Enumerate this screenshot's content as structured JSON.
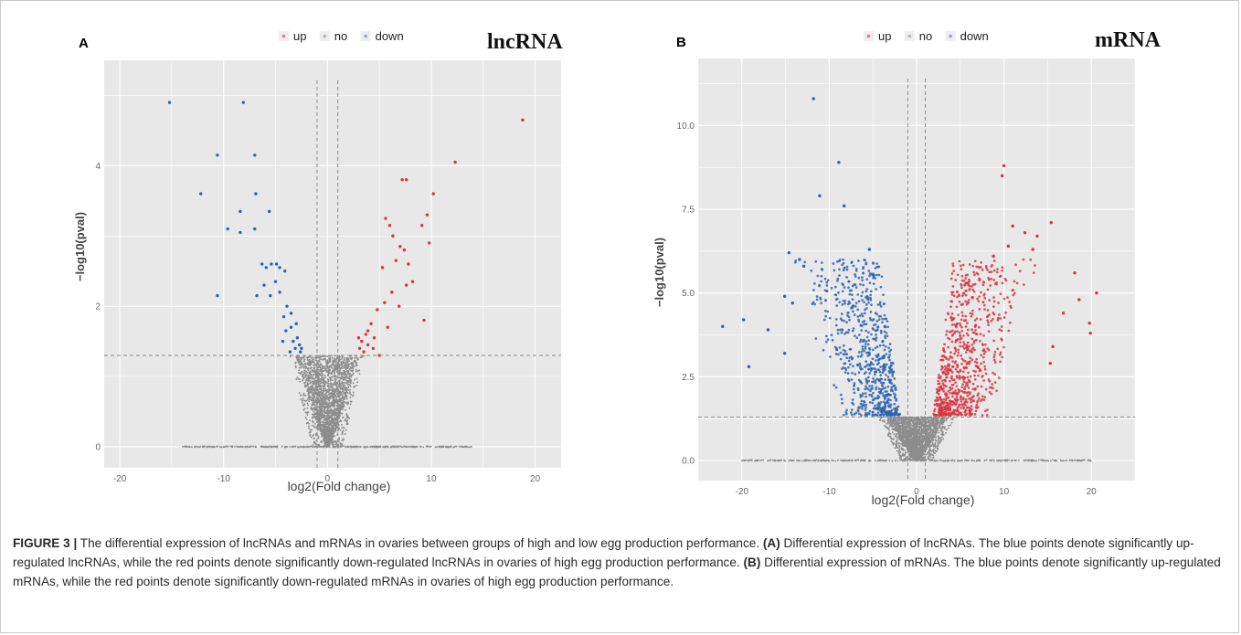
{
  "figure": {
    "panels": [
      {
        "letter": "A",
        "dataset_label": "lncRNA"
      },
      {
        "letter": "B",
        "dataset_label": "mRNA"
      }
    ]
  },
  "caption": {
    "figure_label": "FIGURE 3 |",
    "text_1": " The differential expression of lncRNAs and mRNAs in ovaries between groups of high and low egg production performance. ",
    "bold_a": "(A)",
    "text_2": " Differential expression of lncRNAs. The blue points denote significantly up-regulated lncRNAs, while the red points denote significantly down-regulated lncRNAs in ovaries of high egg production performance. ",
    "bold_b": "(B)",
    "text_3": " Differential expression of mRNAs. The blue points denote significantly up-regulated mRNAs, while the red points denote significantly down-regulated mRNAs in ovaries of high egg production performance."
  },
  "chart_data": [
    {
      "type": "scatter",
      "panel": "A",
      "title": "lncRNA",
      "xlabel": "log2(Fold change)",
      "ylabel": "−log10(pval)",
      "xlim": [
        -21.5,
        22.5
      ],
      "ylim": [
        -0.3,
        5.5
      ],
      "xticks": [
        -20,
        -10,
        0,
        10,
        20
      ],
      "xtick_labels": [
        "-20",
        "-10",
        "0",
        "10",
        "20"
      ],
      "yticks": [
        0,
        2,
        4
      ],
      "ytick_labels": [
        "0",
        "2",
        "4"
      ],
      "grid": true,
      "legend": {
        "position": "top",
        "entries": [
          {
            "label": "up",
            "color": "#e8747c"
          },
          {
            "label": "no",
            "color": "#b8b8b8"
          },
          {
            "label": "down",
            "color": "#7ea6d6"
          }
        ]
      },
      "thresholds": {
        "x": [
          -1,
          1
        ],
        "y": 1.3
      },
      "colors": {
        "up": "#d8343f",
        "no": "#8d8d8d",
        "down": "#2e62b0"
      },
      "series": [
        {
          "name": "up",
          "points": [
            [
              18.8,
              4.65
            ],
            [
              12.3,
              4.05
            ],
            [
              10.2,
              3.6
            ],
            [
              7.6,
              3.8
            ],
            [
              7.2,
              3.8
            ],
            [
              5.6,
              3.25
            ],
            [
              9.6,
              3.3
            ],
            [
              6.0,
              3.15
            ],
            [
              9.1,
              3.15
            ],
            [
              6.3,
              3.0
            ],
            [
              7.0,
              2.85
            ],
            [
              7.4,
              2.8
            ],
            [
              6.6,
              2.65
            ],
            [
              5.3,
              2.55
            ],
            [
              9.8,
              2.9
            ],
            [
              7.8,
              2.6
            ],
            [
              8.2,
              2.35
            ],
            [
              7.6,
              2.3
            ],
            [
              6.2,
              2.2
            ],
            [
              5.5,
              2.05
            ],
            [
              6.9,
              2.0
            ],
            [
              4.8,
              1.95
            ],
            [
              4.2,
              1.75
            ],
            [
              9.3,
              1.8
            ],
            [
              5.8,
              1.7
            ],
            [
              3.7,
              1.6
            ],
            [
              4.5,
              1.55
            ],
            [
              3.3,
              1.5
            ],
            [
              3.9,
              1.45
            ],
            [
              4.4,
              1.4
            ],
            [
              3.1,
              1.4
            ],
            [
              3.5,
              1.35
            ],
            [
              5.0,
              1.3
            ],
            [
              3.9,
              1.65
            ],
            [
              3.0,
              1.55
            ]
          ]
        },
        {
          "name": "down",
          "points": [
            [
              -15.2,
              4.9
            ],
            [
              -8.1,
              4.9
            ],
            [
              -10.6,
              4.15
            ],
            [
              -7.0,
              4.15
            ],
            [
              -6.9,
              3.6
            ],
            [
              -12.2,
              3.6
            ],
            [
              -8.4,
              3.35
            ],
            [
              -5.6,
              3.35
            ],
            [
              -7.0,
              3.1
            ],
            [
              -9.6,
              3.1
            ],
            [
              -8.4,
              3.05
            ],
            [
              -6.3,
              2.6
            ],
            [
              -5.4,
              2.6
            ],
            [
              -4.9,
              2.6
            ],
            [
              -5.9,
              2.55
            ],
            [
              -4.6,
              2.55
            ],
            [
              -4.1,
              2.5
            ],
            [
              -5.0,
              2.35
            ],
            [
              -6.1,
              2.3
            ],
            [
              -4.6,
              2.2
            ],
            [
              -6.8,
              2.15
            ],
            [
              -10.6,
              2.15
            ],
            [
              -5.5,
              2.15
            ],
            [
              -3.9,
              2.0
            ],
            [
              -3.5,
              1.9
            ],
            [
              -4.2,
              1.85
            ],
            [
              -3.0,
              1.75
            ],
            [
              -3.5,
              1.7
            ],
            [
              -4.0,
              1.65
            ],
            [
              -2.9,
              1.55
            ],
            [
              -3.3,
              1.5
            ],
            [
              -4.3,
              1.5
            ],
            [
              -2.7,
              1.45
            ],
            [
              -3.1,
              1.4
            ],
            [
              -2.5,
              1.4
            ],
            [
              -3.6,
              1.35
            ],
            [
              -2.6,
              1.35
            ]
          ]
        }
      ]
    },
    {
      "type": "scatter",
      "panel": "B",
      "title": "mRNA",
      "xlabel": "log2(Fold change)",
      "ylabel": "−log10(pval)",
      "xlim": [
        -25,
        25
      ],
      "ylim": [
        -0.6,
        12
      ],
      "xticks": [
        -20,
        -10,
        0,
        10,
        20
      ],
      "xtick_labels": [
        "-20",
        "-10",
        "0",
        "10",
        "20"
      ],
      "yticks": [
        0,
        2.5,
        5,
        7.5,
        10
      ],
      "ytick_labels": [
        "0.0",
        "2.5",
        "5.0",
        "7.5",
        "10.0"
      ],
      "grid": true,
      "legend": {
        "position": "top",
        "entries": [
          {
            "label": "up",
            "color": "#e8747c"
          },
          {
            "label": "no",
            "color": "#b8b8b8"
          },
          {
            "label": "down",
            "color": "#7ea6d6"
          }
        ]
      },
      "thresholds": {
        "x": [
          -1,
          1
        ],
        "y": 1.3
      },
      "colors": {
        "up": "#d8343f",
        "no": "#8d8d8d",
        "down": "#2e62b0"
      },
      "series": [
        {
          "name": "up",
          "points": [
            [
              10.0,
              8.8
            ],
            [
              9.8,
              8.5
            ],
            [
              15.4,
              7.1
            ],
            [
              11.0,
              7.0
            ],
            [
              12.4,
              6.8
            ],
            [
              13.8,
              6.7
            ],
            [
              10.5,
              6.4
            ],
            [
              13.3,
              6.3
            ],
            [
              8.8,
              6.1
            ],
            [
              18.1,
              5.6
            ],
            [
              20.6,
              5.0
            ],
            [
              18.6,
              4.8
            ],
            [
              19.8,
              4.1
            ],
            [
              16.8,
              4.4
            ],
            [
              15.6,
              3.4
            ],
            [
              19.9,
              3.8
            ],
            [
              15.3,
              2.9
            ]
          ]
        },
        {
          "name": "down",
          "points": [
            [
              -11.8,
              10.8
            ],
            [
              -8.9,
              8.9
            ],
            [
              -11.1,
              7.9
            ],
            [
              -8.3,
              7.6
            ],
            [
              -5.4,
              6.3
            ],
            [
              -14.6,
              6.2
            ],
            [
              -13.4,
              6.0
            ],
            [
              -12.9,
              5.8
            ],
            [
              -15.1,
              4.9
            ],
            [
              -14.2,
              4.7
            ],
            [
              -19.8,
              4.2
            ],
            [
              -22.2,
              4.0
            ],
            [
              -17.0,
              3.9
            ],
            [
              -15.1,
              3.2
            ],
            [
              -19.2,
              2.8
            ]
          ]
        }
      ],
      "dense_clouds": [
        {
          "series": "up",
          "count": 750,
          "x_range": [
            2.5,
            15
          ],
          "y_range": [
            1.35,
            6
          ]
        },
        {
          "series": "down",
          "count": 720,
          "x_range": [
            -15,
            -2.5
          ],
          "y_range": [
            1.35,
            6
          ]
        },
        {
          "series": "no",
          "count": 2400,
          "x_range": [
            -10,
            10
          ],
          "y_range": [
            0,
            1.3
          ]
        }
      ]
    }
  ]
}
